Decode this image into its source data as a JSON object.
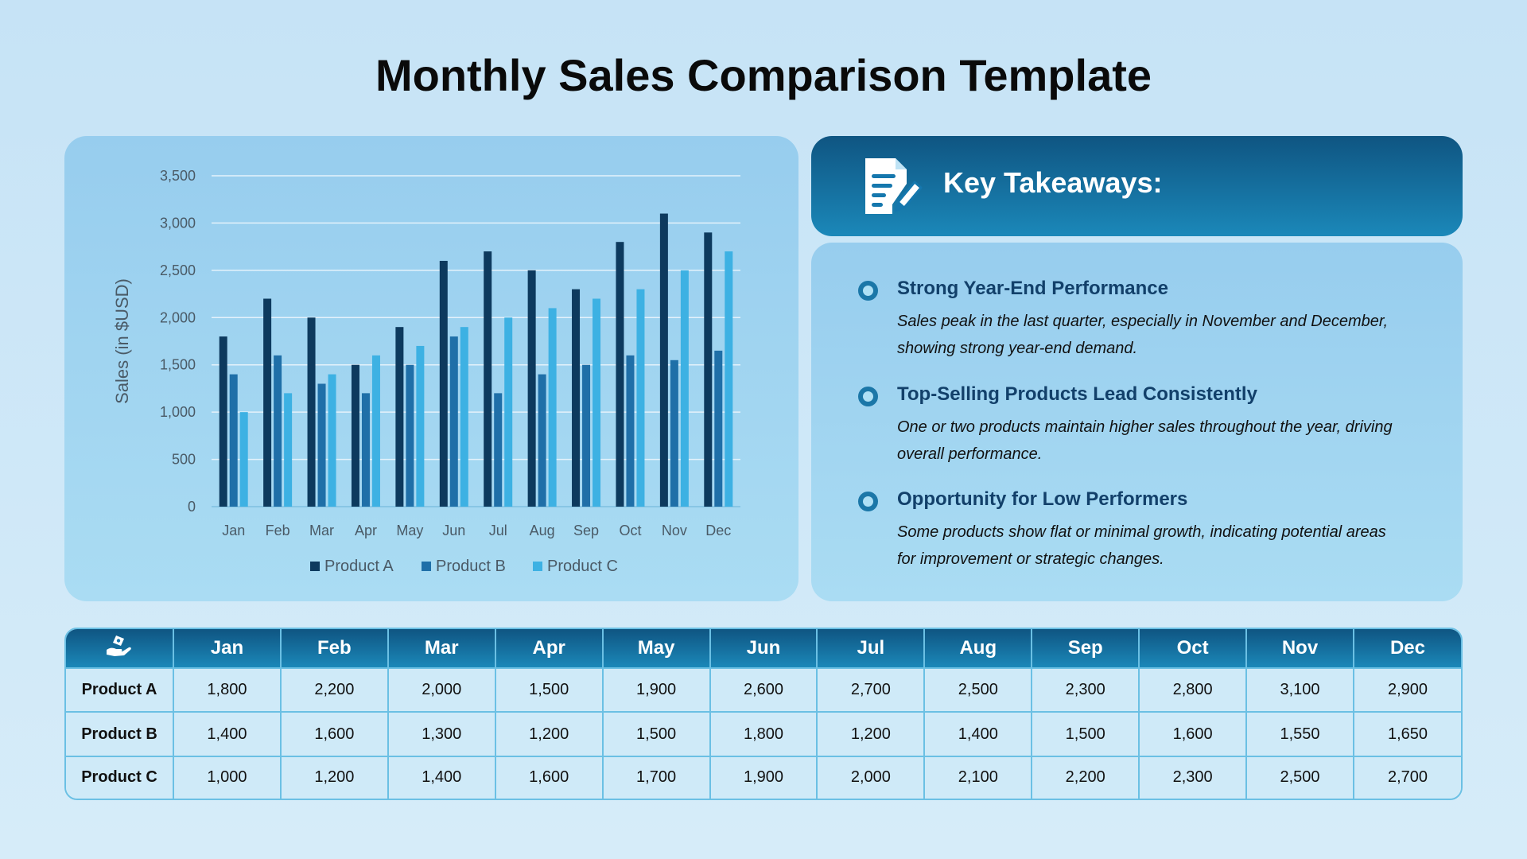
{
  "title": "Monthly Sales Comparison Template",
  "chart_data": {
    "type": "bar",
    "categories": [
      "Jan",
      "Feb",
      "Mar",
      "Apr",
      "May",
      "Jun",
      "Jul",
      "Aug",
      "Sep",
      "Oct",
      "Nov",
      "Dec"
    ],
    "series": [
      {
        "name": "Product A",
        "color": "#0d3a5e",
        "values": [
          1800,
          2200,
          2000,
          1500,
          1900,
          2600,
          2700,
          2500,
          2300,
          2800,
          3100,
          2900
        ]
      },
      {
        "name": "Product B",
        "color": "#1f6fa8",
        "values": [
          1400,
          1600,
          1300,
          1200,
          1500,
          1800,
          1200,
          1400,
          1500,
          1600,
          1550,
          1650
        ]
      },
      {
        "name": "Product C",
        "color": "#3db1e3",
        "values": [
          1000,
          1200,
          1400,
          1600,
          1700,
          1900,
          2000,
          2100,
          2200,
          2300,
          2500,
          2700
        ]
      }
    ],
    "yticks": [
      "0",
      "500",
      "1,000",
      "1,500",
      "2,000",
      "2,500",
      "3,000",
      "3,500"
    ],
    "ylim": [
      0,
      3500
    ],
    "ylabel": "Sales (in $USD)",
    "xlabel": "",
    "grid": true,
    "legend_position": "bottom"
  },
  "takeaways": {
    "title": "Key Takeaways:",
    "icon": "document-edit-icon",
    "items": [
      {
        "heading": "Strong Year-End Performance",
        "text": "Sales peak in the last quarter, especially in November and December, showing strong year-end demand."
      },
      {
        "heading": "Top-Selling Products Lead Consistently",
        "text": "One or two products maintain higher sales throughout the year, driving overall performance."
      },
      {
        "heading": "Opportunity for Low Performers",
        "text": "Some products show flat or minimal growth, indicating potential areas for improvement or strategic changes."
      }
    ]
  },
  "table": {
    "corner_icon": "hand-money-icon",
    "headers": [
      "Jan",
      "Feb",
      "Mar",
      "Apr",
      "May",
      "Jun",
      "Jul",
      "Aug",
      "Sep",
      "Oct",
      "Nov",
      "Dec"
    ],
    "rows": [
      {
        "label": "Product A",
        "cells": [
          "1,800",
          "2,200",
          "2,000",
          "1,500",
          "1,900",
          "2,600",
          "2,700",
          "2,500",
          "2,300",
          "2,800",
          "3,100",
          "2,900"
        ]
      },
      {
        "label": "Product B",
        "cells": [
          "1,400",
          "1,600",
          "1,300",
          "1,200",
          "1,500",
          "1,800",
          "1,200",
          "1,400",
          "1,500",
          "1,600",
          "1,550",
          "1,650"
        ]
      },
      {
        "label": "Product C",
        "cells": [
          "1,000",
          "1,200",
          "1,400",
          "1,600",
          "1,700",
          "1,900",
          "2,000",
          "2,100",
          "2,200",
          "2,300",
          "2,500",
          "2,700"
        ]
      }
    ]
  }
}
